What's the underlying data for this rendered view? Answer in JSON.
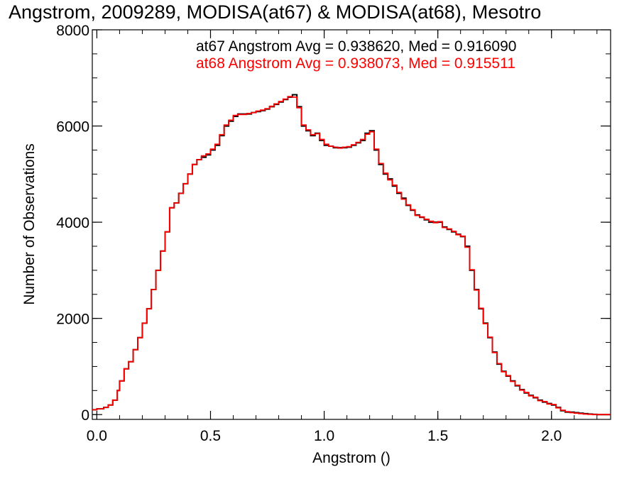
{
  "chart_data": {
    "type": "line",
    "step": true,
    "title": "Angstrom, 2009289, MODISA(at67) & MODISA(at68), Mesotro",
    "xlabel": "Angstrom ()",
    "ylabel": "Number of Observations",
    "xlim": [
      -0.02,
      2.26
    ],
    "ylim": [
      -100,
      8000
    ],
    "xticks": [
      "0.0",
      "0.5",
      "1.0",
      "1.5",
      "2.0"
    ],
    "yticks": [
      "0",
      "2000",
      "4000",
      "6000",
      "8000"
    ],
    "annotations": [
      {
        "text": "at67 Angstrom Avg = 0.938620, Med = 0.916090",
        "color": "#000000"
      },
      {
        "text": "at68 Angstrom Avg = 0.938073, Med = 0.915511",
        "color": "#ff0000"
      }
    ],
    "series": [
      {
        "color": "#000000",
        "x": [
          -0.02,
          0.0,
          0.03,
          0.05,
          0.07,
          0.09,
          0.1,
          0.12,
          0.14,
          0.16,
          0.18,
          0.2,
          0.22,
          0.24,
          0.26,
          0.28,
          0.3,
          0.32,
          0.34,
          0.36,
          0.38,
          0.4,
          0.42,
          0.44,
          0.46,
          0.48,
          0.5,
          0.52,
          0.54,
          0.56,
          0.58,
          0.6,
          0.62,
          0.64,
          0.66,
          0.68,
          0.7,
          0.72,
          0.74,
          0.76,
          0.78,
          0.8,
          0.82,
          0.84,
          0.86,
          0.88,
          0.9,
          0.92,
          0.94,
          0.96,
          0.98,
          1.0,
          1.02,
          1.04,
          1.06,
          1.08,
          1.1,
          1.12,
          1.14,
          1.16,
          1.18,
          1.2,
          1.22,
          1.24,
          1.26,
          1.28,
          1.3,
          1.32,
          1.34,
          1.36,
          1.38,
          1.4,
          1.42,
          1.44,
          1.46,
          1.48,
          1.5,
          1.52,
          1.54,
          1.56,
          1.58,
          1.6,
          1.62,
          1.64,
          1.66,
          1.68,
          1.7,
          1.72,
          1.74,
          1.76,
          1.78,
          1.8,
          1.82,
          1.84,
          1.86,
          1.88,
          1.9,
          1.92,
          1.94,
          1.96,
          1.98,
          2.0,
          2.02,
          2.04,
          2.06,
          2.08,
          2.1,
          2.12,
          2.14,
          2.16,
          2.18,
          2.2,
          2.26
        ],
        "y": [
          100,
          120,
          150,
          200,
          300,
          500,
          700,
          950,
          1100,
          1350,
          1600,
          1900,
          2200,
          2600,
          3000,
          3400,
          3800,
          4300,
          4400,
          4600,
          4800,
          5000,
          5200,
          5300,
          5350,
          5400,
          5500,
          5600,
          5800,
          6000,
          6100,
          6200,
          6250,
          6250,
          6250,
          6280,
          6300,
          6320,
          6350,
          6400,
          6450,
          6500,
          6550,
          6600,
          6650,
          6400,
          6000,
          5900,
          5800,
          5850,
          5700,
          5600,
          5580,
          5550,
          5550,
          5550,
          5560,
          5600,
          5650,
          5700,
          5850,
          5900,
          5500,
          5200,
          5000,
          4900,
          4750,
          4600,
          4500,
          4350,
          4250,
          4150,
          4100,
          4050,
          4000,
          4000,
          4000,
          3900,
          3850,
          3800,
          3750,
          3700,
          3500,
          3000,
          2600,
          2200,
          1900,
          1600,
          1300,
          1050,
          900,
          800,
          700,
          600,
          520,
          450,
          400,
          350,
          300,
          260,
          230,
          200,
          150,
          80,
          50,
          50,
          40,
          30,
          20,
          10,
          5,
          0,
          0
        ]
      },
      {
        "color": "#ff0000",
        "x": [
          -0.02,
          0.0,
          0.03,
          0.05,
          0.07,
          0.09,
          0.1,
          0.12,
          0.14,
          0.16,
          0.18,
          0.2,
          0.22,
          0.24,
          0.26,
          0.28,
          0.3,
          0.32,
          0.34,
          0.36,
          0.38,
          0.4,
          0.42,
          0.44,
          0.46,
          0.48,
          0.5,
          0.52,
          0.54,
          0.56,
          0.58,
          0.6,
          0.62,
          0.64,
          0.66,
          0.68,
          0.7,
          0.72,
          0.74,
          0.76,
          0.78,
          0.8,
          0.82,
          0.84,
          0.86,
          0.88,
          0.9,
          0.92,
          0.94,
          0.96,
          0.98,
          1.0,
          1.02,
          1.04,
          1.06,
          1.08,
          1.1,
          1.12,
          1.14,
          1.16,
          1.18,
          1.2,
          1.22,
          1.24,
          1.26,
          1.28,
          1.3,
          1.32,
          1.34,
          1.36,
          1.38,
          1.4,
          1.42,
          1.44,
          1.46,
          1.48,
          1.5,
          1.52,
          1.54,
          1.56,
          1.58,
          1.6,
          1.62,
          1.64,
          1.66,
          1.68,
          1.7,
          1.72,
          1.74,
          1.76,
          1.78,
          1.8,
          1.82,
          1.84,
          1.86,
          1.88,
          1.9,
          1.92,
          1.94,
          1.96,
          1.98,
          2.0,
          2.02,
          2.04,
          2.06,
          2.08,
          2.1,
          2.12,
          2.14,
          2.16,
          2.18,
          2.2,
          2.26
        ],
        "y": [
          100,
          120,
          150,
          200,
          300,
          500,
          700,
          950,
          1100,
          1350,
          1600,
          1900,
          2200,
          2600,
          3000,
          3400,
          3800,
          4300,
          4400,
          4600,
          4800,
          5000,
          5200,
          5300,
          5380,
          5420,
          5520,
          5620,
          5820,
          6020,
          6120,
          6220,
          6240,
          6240,
          6260,
          6280,
          6310,
          6330,
          6360,
          6410,
          6460,
          6510,
          6560,
          6610,
          6600,
          6380,
          6020,
          5920,
          5820,
          5840,
          5720,
          5620,
          5580,
          5560,
          5540,
          5560,
          5570,
          5610,
          5660,
          5720,
          5830,
          5880,
          5520,
          5220,
          5020,
          4880,
          4770,
          4620,
          4480,
          4360,
          4260,
          4140,
          4110,
          4060,
          4020,
          3990,
          4010,
          3890,
          3860,
          3810,
          3740,
          3710,
          3480,
          3010,
          2590,
          2210,
          1890,
          1610,
          1290,
          1060,
          890,
          810,
          690,
          610,
          510,
          460,
          390,
          360,
          290,
          270,
          220,
          210,
          140,
          90,
          60,
          40,
          30,
          20,
          10,
          5,
          0,
          0,
          0
        ]
      }
    ]
  }
}
